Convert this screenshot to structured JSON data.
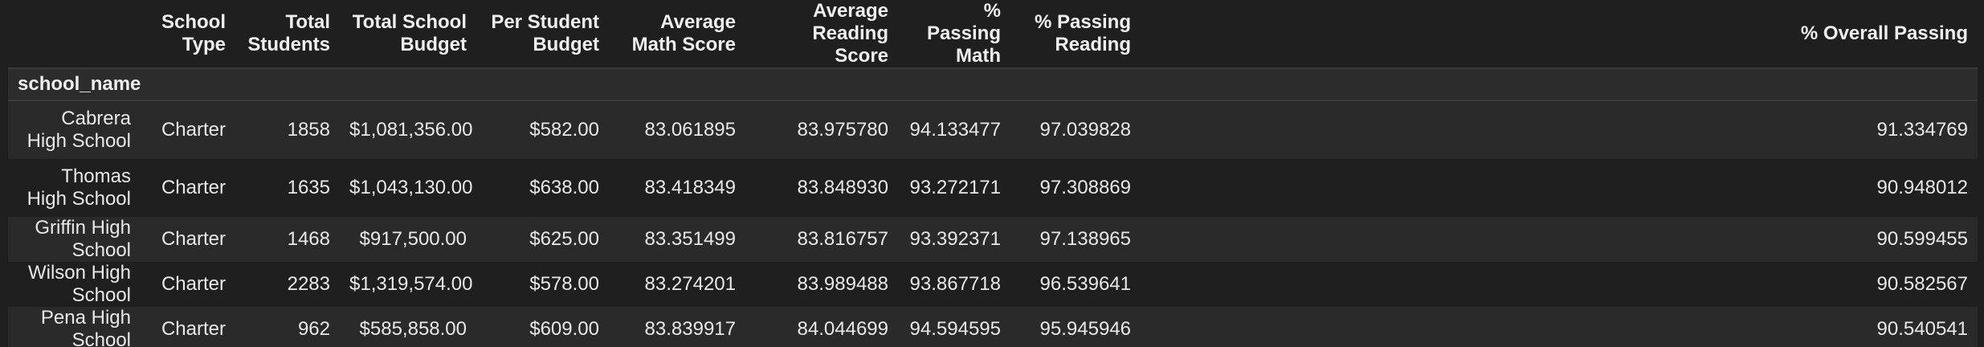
{
  "table": {
    "index_name": "school_name",
    "columns": [
      "School Type",
      "Total Students",
      "Total School Budget",
      "Per Student Budget",
      "Average Math Score",
      "Average Reading Score",
      "% Passing Math",
      "% Passing Reading",
      "% Overall Passing"
    ],
    "rows": [
      {
        "school_name": "Cabrera High School",
        "cells": [
          "Charter",
          "1858",
          "$1,081,356.00",
          "$582.00",
          "83.061895",
          "83.975780",
          "94.133477",
          "97.039828",
          "91.334769"
        ]
      },
      {
        "school_name": "Thomas High School",
        "cells": [
          "Charter",
          "1635",
          "$1,043,130.00",
          "$638.00",
          "83.418349",
          "83.848930",
          "93.272171",
          "97.308869",
          "90.948012"
        ]
      },
      {
        "school_name": "Griffin High School",
        "cells": [
          "Charter",
          "1468",
          "$917,500.00",
          "$625.00",
          "83.351499",
          "83.816757",
          "93.392371",
          "97.138965",
          "90.599455"
        ]
      },
      {
        "school_name": "Wilson High School",
        "cells": [
          "Charter",
          "2283",
          "$1,319,574.00",
          "$578.00",
          "83.274201",
          "83.989488",
          "93.867718",
          "96.539641",
          "90.582567"
        ]
      },
      {
        "school_name": "Pena High School",
        "cells": [
          "Charter",
          "962",
          "$585,858.00",
          "$609.00",
          "83.839917",
          "84.044699",
          "94.594595",
          "95.945946",
          "90.540541"
        ]
      }
    ]
  },
  "colors": {
    "background": "#1f1f1f",
    "row_stripe": "#2a2a2a",
    "index_header_band": "#2c2c2c",
    "text": "#e8e8e8"
  }
}
